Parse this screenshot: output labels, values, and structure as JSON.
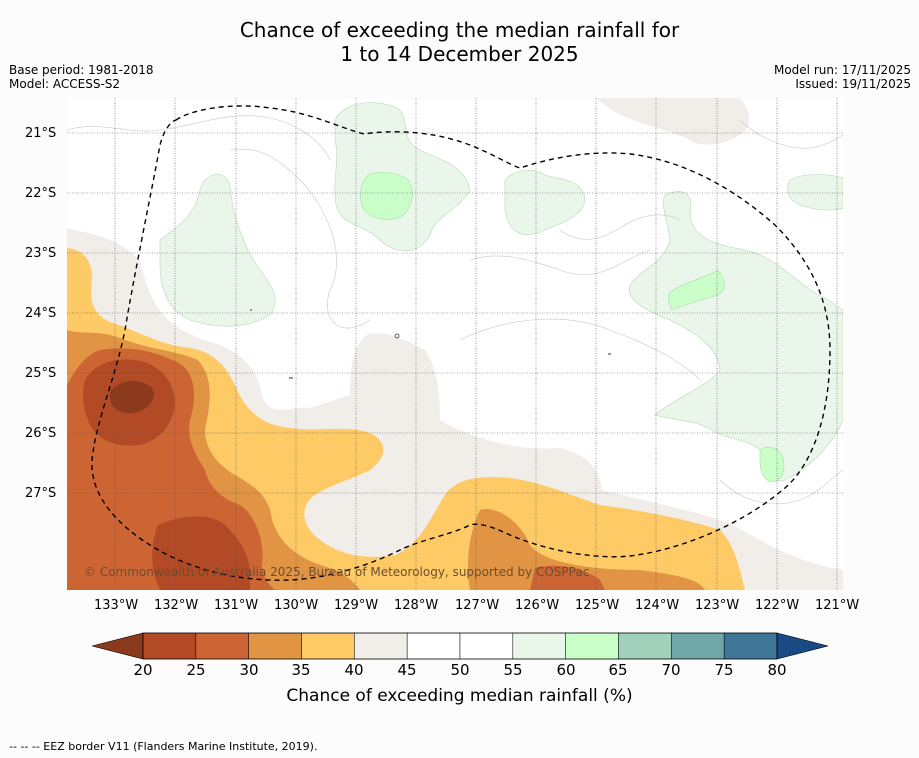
{
  "title": {
    "line1": "Chance of exceeding the median rainfall for",
    "line2": "1 to 14 December 2025"
  },
  "meta_left": {
    "base_period": "Base period: 1981-2018",
    "model": "Model: ACCESS-S2"
  },
  "meta_right": {
    "model_run": "Model run: 17/11/2025",
    "issued": "Issued: 19/11/2025"
  },
  "lat_labels": [
    "21°S",
    "22°S",
    "23°S",
    "24°S",
    "25°S",
    "26°S",
    "27°S"
  ],
  "lon_labels": [
    "133°W",
    "132°W",
    "131°W",
    "130°W",
    "129°W",
    "128°W",
    "127°W",
    "126°W",
    "125°W",
    "124°W",
    "123°W",
    "122°W",
    "121°W"
  ],
  "credit": "© Commonwealth of Australia 2025, Bureau of Meteorology, supported by COSPPac",
  "colorbar": {
    "title": "Chance of exceeding median rainfall (%)",
    "ticks": [
      "20",
      "25",
      "30",
      "35",
      "40",
      "45",
      "50",
      "55",
      "60",
      "65",
      "70",
      "75",
      "80"
    ],
    "colors": {
      "below20": "#8c3a1e",
      "c20_25": "#b24a26",
      "c25_30": "#cc6533",
      "c30_35": "#e09444",
      "c35_40": "#fdca66",
      "c40_45": "#f1ede8",
      "c45_50": "#ffffff",
      "c50_55": "#ffffff",
      "c55_60": "#eaf6ea",
      "c60_65": "#caffca",
      "c65_70": "#9fd1bb",
      "c70_75": "#6fa7a8",
      "c75_80": "#3f7597",
      "above80": "#1a4a84"
    }
  },
  "footer": "--  --  -- EEZ border V11 (Flanders Marine Institute, 2019)."
}
